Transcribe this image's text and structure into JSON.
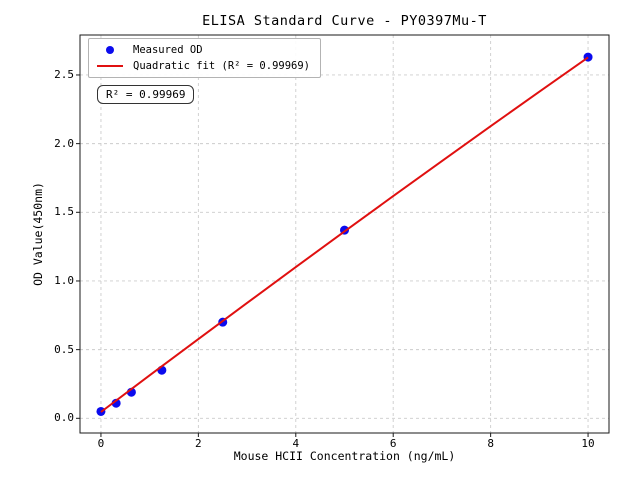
{
  "chart_data": {
    "type": "scatter",
    "title": "ELISA Standard Curve - PY0397Mu-T",
    "xlabel": "Mouse HCII Concentration (ng/mL)",
    "ylabel": "OD Value(450nm)",
    "xlim": [
      -0.43,
      10.43
    ],
    "ylim": [
      -0.107,
      2.791
    ],
    "x_ticks": [
      0,
      2,
      4,
      6,
      8,
      10
    ],
    "x_tick_labels": [
      "0",
      "2",
      "4",
      "6",
      "8",
      "10"
    ],
    "y_ticks": [
      0,
      0.5,
      1,
      1.5,
      2,
      2.5
    ],
    "y_tick_labels": [
      "0.0",
      "0.5",
      "1.0",
      "1.5",
      "2.0",
      "2.5"
    ],
    "grid": true,
    "legend": {
      "position": "upper-left",
      "items": [
        "Measured OD",
        "Quadratic fit (R² = 0.99969)"
      ]
    },
    "annotation": "R² = 0.99969",
    "r_squared": 0.99969,
    "series": [
      {
        "name": "Measured OD",
        "type": "scatter",
        "color": "#0b0bee",
        "points": [
          [
            0,
            0.05
          ],
          [
            0.312,
            0.11
          ],
          [
            0.625,
            0.19
          ],
          [
            1.25,
            0.35
          ],
          [
            2.5,
            0.7
          ],
          [
            5,
            1.37
          ],
          [
            10,
            2.63
          ]
        ]
      },
      {
        "name": "Quadratic fit (R² = 0.99969)",
        "type": "line",
        "color": "#e01010",
        "points": [
          [
            0,
            0.046
          ],
          [
            1,
            0.313
          ],
          [
            2,
            0.577
          ],
          [
            3,
            0.84
          ],
          [
            4,
            1.101
          ],
          [
            5,
            1.361
          ],
          [
            6,
            1.618
          ],
          [
            7,
            1.873
          ],
          [
            8,
            2.127
          ],
          [
            9,
            2.378
          ],
          [
            10,
            2.628
          ]
        ]
      }
    ]
  },
  "colors": {
    "grid": "#cccccc",
    "spine": "#1a1a1a",
    "tick": "#1a1a1a",
    "dot": "#0b0bee",
    "line": "#e01010",
    "legend_border": "#b3b3b3"
  }
}
